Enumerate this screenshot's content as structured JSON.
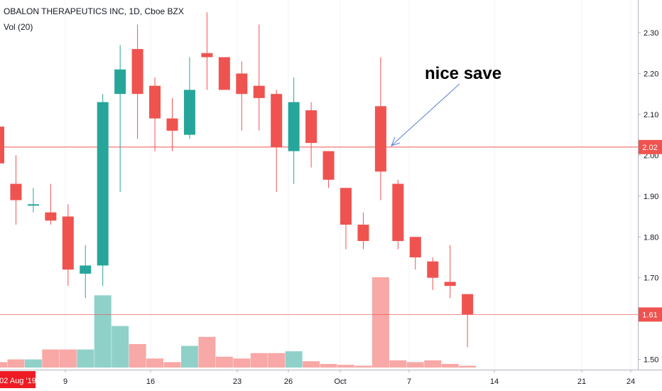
{
  "legend": {
    "title": "OBALON THERAPEUTICS INC, 1D, Cboe BZX",
    "volume": "Vol (20)"
  },
  "annotation": {
    "text": "nice save"
  },
  "colors": {
    "up": "#26a69a",
    "down": "#ef5350",
    "volume_up": "#8fd1c9",
    "volume_down": "#f8a8a6",
    "line": "#ef5350",
    "arrow": "#5b7fd4",
    "axis_text": "#131722"
  },
  "chart_data": {
    "type": "candlestick",
    "price_axis": {
      "ylim": [
        1.475,
        2.38
      ],
      "ticks": [
        "1.50",
        "1.60",
        "1.70",
        "1.80",
        "1.90",
        "2.00",
        "2.10",
        "2.20",
        "2.30"
      ]
    },
    "date_axis": {
      "ticks": [
        {
          "label": "9",
          "date": "2019-08-09"
        },
        {
          "label": "16",
          "date": "2019-08-16"
        },
        {
          "label": "23",
          "date": "2019-08-23"
        },
        {
          "label": "26",
          "date": "2019-08-26"
        },
        {
          "label": "Oct",
          "date": "2019-10-01"
        },
        {
          "label": "7",
          "date": "2019-10-07"
        },
        {
          "label": "14",
          "date": "2019-10-14"
        },
        {
          "label": "21",
          "date": "2019-10-21"
        },
        {
          "label": "24",
          "date": "2019-10-24"
        }
      ],
      "cursor_label": "02 Aug '19"
    },
    "horizontal_lines": [
      {
        "value": 2.02,
        "label": "2.02"
      },
      {
        "value": 1.61,
        "label": "1.61"
      }
    ],
    "candles": [
      {
        "open": 2.07,
        "high": 2.1,
        "low": 1.97,
        "close": 1.98
      },
      {
        "open": 1.93,
        "high": 2.0,
        "low": 1.83,
        "close": 1.89
      },
      {
        "open": 1.88,
        "high": 1.92,
        "low": 1.86,
        "close": 1.88
      },
      {
        "open": 1.86,
        "high": 1.93,
        "low": 1.83,
        "close": 1.84
      },
      {
        "open": 1.85,
        "high": 1.88,
        "low": 1.68,
        "close": 1.72
      },
      {
        "open": 1.71,
        "high": 1.78,
        "low": 1.65,
        "close": 1.73
      },
      {
        "open": 1.73,
        "high": 2.15,
        "low": 1.68,
        "close": 2.13
      },
      {
        "open": 2.15,
        "high": 2.27,
        "low": 1.91,
        "close": 2.21
      },
      {
        "open": 2.26,
        "high": 2.32,
        "low": 2.04,
        "close": 2.15
      },
      {
        "open": 2.17,
        "high": 2.19,
        "low": 2.01,
        "close": 2.09
      },
      {
        "open": 2.09,
        "high": 2.14,
        "low": 2.01,
        "close": 2.06
      },
      {
        "open": 2.05,
        "high": 2.24,
        "low": 2.04,
        "close": 2.16
      },
      {
        "open": 2.25,
        "high": 2.35,
        "low": 2.16,
        "close": 2.24
      },
      {
        "open": 2.24,
        "high": 2.24,
        "low": 2.16,
        "close": 2.16
      },
      {
        "open": 2.2,
        "high": 2.23,
        "low": 2.06,
        "close": 2.15
      },
      {
        "open": 2.17,
        "high": 2.32,
        "low": 2.06,
        "close": 2.14
      },
      {
        "open": 2.15,
        "high": 2.16,
        "low": 1.91,
        "close": 2.02
      },
      {
        "open": 2.01,
        "high": 2.19,
        "low": 1.93,
        "close": 2.13
      },
      {
        "open": 2.11,
        "high": 2.13,
        "low": 1.97,
        "close": 2.03
      },
      {
        "open": 2.01,
        "high": 2.01,
        "low": 1.92,
        "close": 1.94
      },
      {
        "open": 1.92,
        "high": 1.92,
        "low": 1.77,
        "close": 1.83
      },
      {
        "open": 1.83,
        "high": 1.86,
        "low": 1.77,
        "close": 1.79
      },
      {
        "open": 2.12,
        "high": 2.24,
        "low": 1.89,
        "close": 1.96
      },
      {
        "open": 1.93,
        "high": 1.94,
        "low": 1.77,
        "close": 1.79
      },
      {
        "open": 1.8,
        "high": 1.8,
        "low": 1.72,
        "close": 1.75
      },
      {
        "open": 1.74,
        "high": 1.75,
        "low": 1.67,
        "close": 1.7
      },
      {
        "open": 1.69,
        "high": 1.78,
        "low": 1.65,
        "close": 1.68
      },
      {
        "open": 1.66,
        "high": 1.66,
        "low": 1.53,
        "close": 1.61
      }
    ],
    "volume": [
      0.06,
      0.09,
      0.09,
      0.2,
      0.2,
      0.2,
      0.8,
      0.46,
      0.26,
      0.1,
      0.06,
      0.24,
      0.34,
      0.12,
      0.1,
      0.16,
      0.16,
      0.18,
      0.07,
      0.04,
      0.03,
      0.02,
      1.0,
      0.08,
      0.06,
      0.08,
      0.04,
      0.02
    ]
  }
}
